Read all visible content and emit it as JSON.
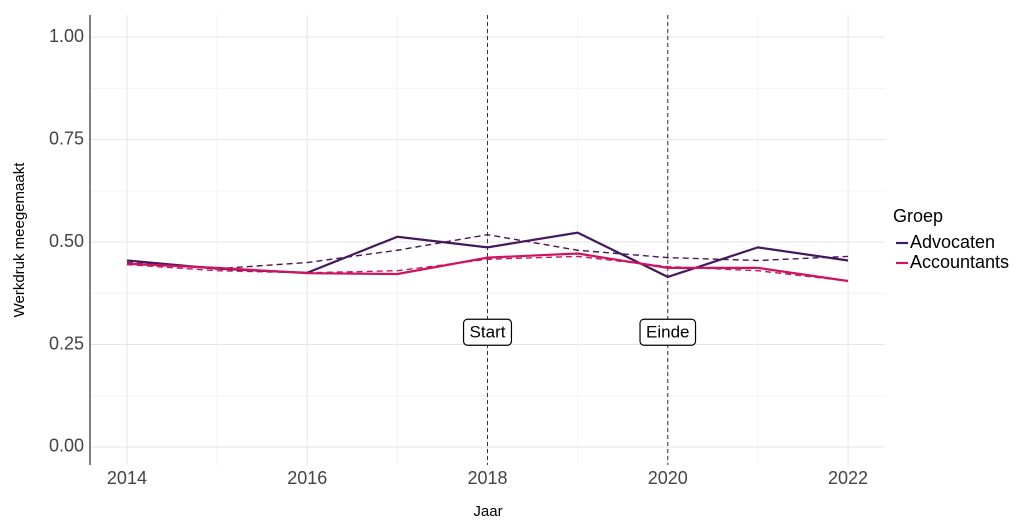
{
  "chart_data": {
    "type": "line",
    "xlabel": "Jaar",
    "ylabel": "Werkdruk meegemaakt",
    "x": [
      2014,
      2015,
      2016,
      2017,
      2018,
      2019,
      2020,
      2021,
      2022
    ],
    "series": [
      {
        "name": "Advocaten",
        "color": "#45175d",
        "values": [
          0.455,
          0.435,
          0.425,
          0.513,
          0.487,
          0.523,
          0.415,
          0.487,
          0.455
        ]
      },
      {
        "name": "Accountants",
        "color": "#cc1461",
        "values": [
          0.447,
          0.437,
          0.424,
          0.422,
          0.462,
          0.472,
          0.437,
          0.437,
          0.405
        ]
      }
    ],
    "trend_series": [
      {
        "color": "#45175d",
        "values": [
          0.45,
          0.435,
          0.45,
          0.48,
          0.518,
          0.48,
          0.462,
          0.455,
          0.465
        ]
      },
      {
        "color": "#cc1461",
        "values": [
          0.445,
          0.43,
          0.425,
          0.43,
          0.458,
          0.465,
          0.44,
          0.43,
          0.405
        ]
      }
    ],
    "annotations": [
      {
        "x": 2018,
        "y": 0.28,
        "text": "Start"
      },
      {
        "x": 2020,
        "y": 0.28,
        "text": "Einde"
      }
    ],
    "legend_title": "Groep",
    "legend": "right",
    "grid": true,
    "xlim": [
      2013.59,
      2022.41
    ],
    "ylim": [
      -0.044,
      1.054
    ],
    "xticks": [
      2014,
      2016,
      2018,
      2020,
      2022
    ],
    "yticks": [
      {
        "value": 0,
        "label": "0.00"
      },
      {
        "value": 0.25,
        "label": "0.25"
      },
      {
        "value": 0.5,
        "label": "0.50"
      },
      {
        "value": 0.75,
        "label": "0.75"
      },
      {
        "value": 1,
        "label": "1.00"
      }
    ]
  }
}
